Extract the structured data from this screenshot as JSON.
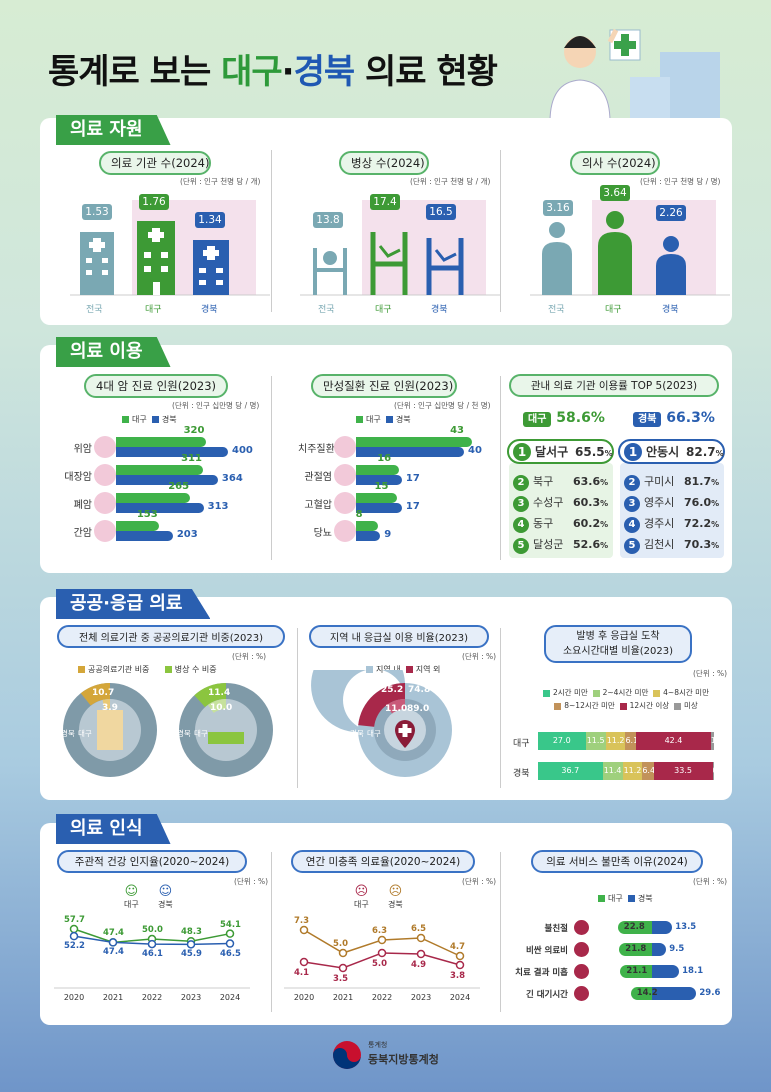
{
  "title": {
    "p1": "통계로 보는 ",
    "p2": "대구",
    "p3": "·",
    "p4": "경북",
    "p5": " 의료 현황"
  },
  "s1": {
    "tag": "의료 자원",
    "facilities": {
      "title": "의료 기관 수(2024)",
      "unit": "(단위 : 인구 천명 당 / 개)",
      "vals": [
        "1.53",
        "1.76",
        "1.34"
      ]
    },
    "beds": {
      "title": "병상 수(2024)",
      "unit": "(단위 : 인구 천명 당 / 개)",
      "vals": [
        "13.8",
        "17.4",
        "16.5"
      ]
    },
    "doctors": {
      "title": "의사 수(2024)",
      "unit": "(단위 : 인구 천명 당 / 명)",
      "vals": [
        "3.16",
        "3.64",
        "2.26"
      ]
    },
    "regions": [
      "전국",
      "대구",
      "경북"
    ]
  },
  "s2": {
    "tag": "의료 이용",
    "cancer": {
      "title": "4대 암 진료 인원(2023)",
      "unit": "(단위 : 인구 십만명 당 / 명)",
      "leg": [
        "대구",
        "경북"
      ],
      "rows": [
        {
          "n": "위암",
          "a": "320",
          "b": "400"
        },
        {
          "n": "대장암",
          "a": "311",
          "b": "364"
        },
        {
          "n": "폐암",
          "a": "265",
          "b": "313"
        },
        {
          "n": "간암",
          "a": "153",
          "b": "203"
        }
      ]
    },
    "chronic": {
      "title": "만성질환 진료 인원(2023)",
      "unit": "(단위 : 인구 십만명 당 / 천 명)",
      "leg": [
        "대구",
        "경북"
      ],
      "rows": [
        {
          "n": "치주질환",
          "a": "43",
          "b": "40"
        },
        {
          "n": "관절염",
          "a": "16",
          "b": "17"
        },
        {
          "n": "고혈압",
          "a": "15",
          "b": "17"
        },
        {
          "n": "당뇨",
          "a": "8",
          "b": "9"
        }
      ]
    },
    "top5": {
      "title": "관내 의료 기관 이용률 TOP 5(2023)",
      "dg": {
        "name": "대구",
        "rate": "58.6",
        "items": [
          [
            "1",
            "달서구",
            "65.5"
          ],
          [
            "2",
            "북구",
            "63.6"
          ],
          [
            "3",
            "수성구",
            "60.3"
          ],
          [
            "4",
            "동구",
            "60.2"
          ],
          [
            "5",
            "달성군",
            "52.6"
          ]
        ]
      },
      "gb": {
        "name": "경북",
        "rate": "66.3",
        "items": [
          [
            "1",
            "안동시",
            "82.7"
          ],
          [
            "2",
            "구미시",
            "81.7"
          ],
          [
            "3",
            "영주시",
            "76.0"
          ],
          [
            "4",
            "경주시",
            "72.2"
          ],
          [
            "5",
            "김천시",
            "70.3"
          ]
        ]
      },
      "pct": "%"
    }
  },
  "s3": {
    "tag": "공공·응급 의료",
    "public": {
      "title": "전체 의료기관 중 공공의료기관 비중(2023)",
      "unit": "(단위 : %)",
      "leg": [
        "공공의료기관 비중",
        "병상 수 비중"
      ],
      "d1": {
        "outer": "10.7",
        "inner": "3.9"
      },
      "d2": {
        "outer": "11.4",
        "inner": "10.0"
      },
      "ring": [
        "경북",
        "대구"
      ]
    },
    "er": {
      "title": "지역 내 응급실 이용 비율(2023)",
      "unit": "(단위 : %)",
      "leg": [
        "지역 내",
        "지역 외"
      ],
      "v": [
        "25.2",
        "74.8",
        "11.0",
        "89.0"
      ],
      "ring": [
        "경북",
        "대구"
      ]
    },
    "arrive": {
      "title1": "발병 후 응급실 도착",
      "title2": "소요시간대별 비율(2023)",
      "unit": "(단위 : %)",
      "leg": [
        "2시간 미만",
        "2~4시간 미만",
        "4~8시간 미만",
        "8~12시간 미만",
        "12시간 이상",
        "미상"
      ],
      "rows": [
        {
          "n": "대구",
          "v": [
            "27.0",
            "11.5",
            "11.2",
            "6.1",
            "42.4",
            "1.8"
          ]
        },
        {
          "n": "경북",
          "v": [
            "36.7",
            "11.4",
            "11.2",
            "6.4",
            "33.5",
            "0.8"
          ]
        }
      ]
    }
  },
  "s4": {
    "tag": "의료 인식",
    "health": {
      "title": "주관적 건강 인지율(2020~2024)",
      "unit": "(단위 : %)",
      "leg": [
        "대구",
        "경북"
      ],
      "years": [
        "2020",
        "2021",
        "2022",
        "2023",
        "2024"
      ],
      "a": [
        "57.7",
        "47.4",
        "50.0",
        "48.3",
        "54.1"
      ],
      "b": [
        "52.2",
        "47.4",
        "46.1",
        "45.9",
        "46.5"
      ]
    },
    "unmet": {
      "title": "연간 미충족 의료율(2020~2024)",
      "unit": "(단위 : %)",
      "leg": [
        "대구",
        "경북"
      ],
      "years": [
        "2020",
        "2021",
        "2022",
        "2023",
        "2024"
      ],
      "a": [
        "4.1",
        "3.5",
        "5.0",
        "4.9",
        "3.8"
      ],
      "b": [
        "7.3",
        "5.0",
        "6.3",
        "6.5",
        "4.7"
      ]
    },
    "dissat": {
      "title": "의료 서비스 불만족 이유(2024)",
      "unit": "(단위 : %)",
      "leg": [
        "대구",
        "경북"
      ],
      "rows": [
        {
          "n": "불친절",
          "a": "22.8",
          "b": "13.5"
        },
        {
          "n": "비싼 의료비",
          "a": "21.8",
          "b": "9.5"
        },
        {
          "n": "치료 결과 미흡",
          "a": "21.1",
          "b": "18.1"
        },
        {
          "n": "긴 대기시간",
          "a": "14.2",
          "b": "29.6"
        }
      ]
    }
  },
  "footer": {
    "org1": "통계청",
    "org2": "동북지방통계청"
  }
}
